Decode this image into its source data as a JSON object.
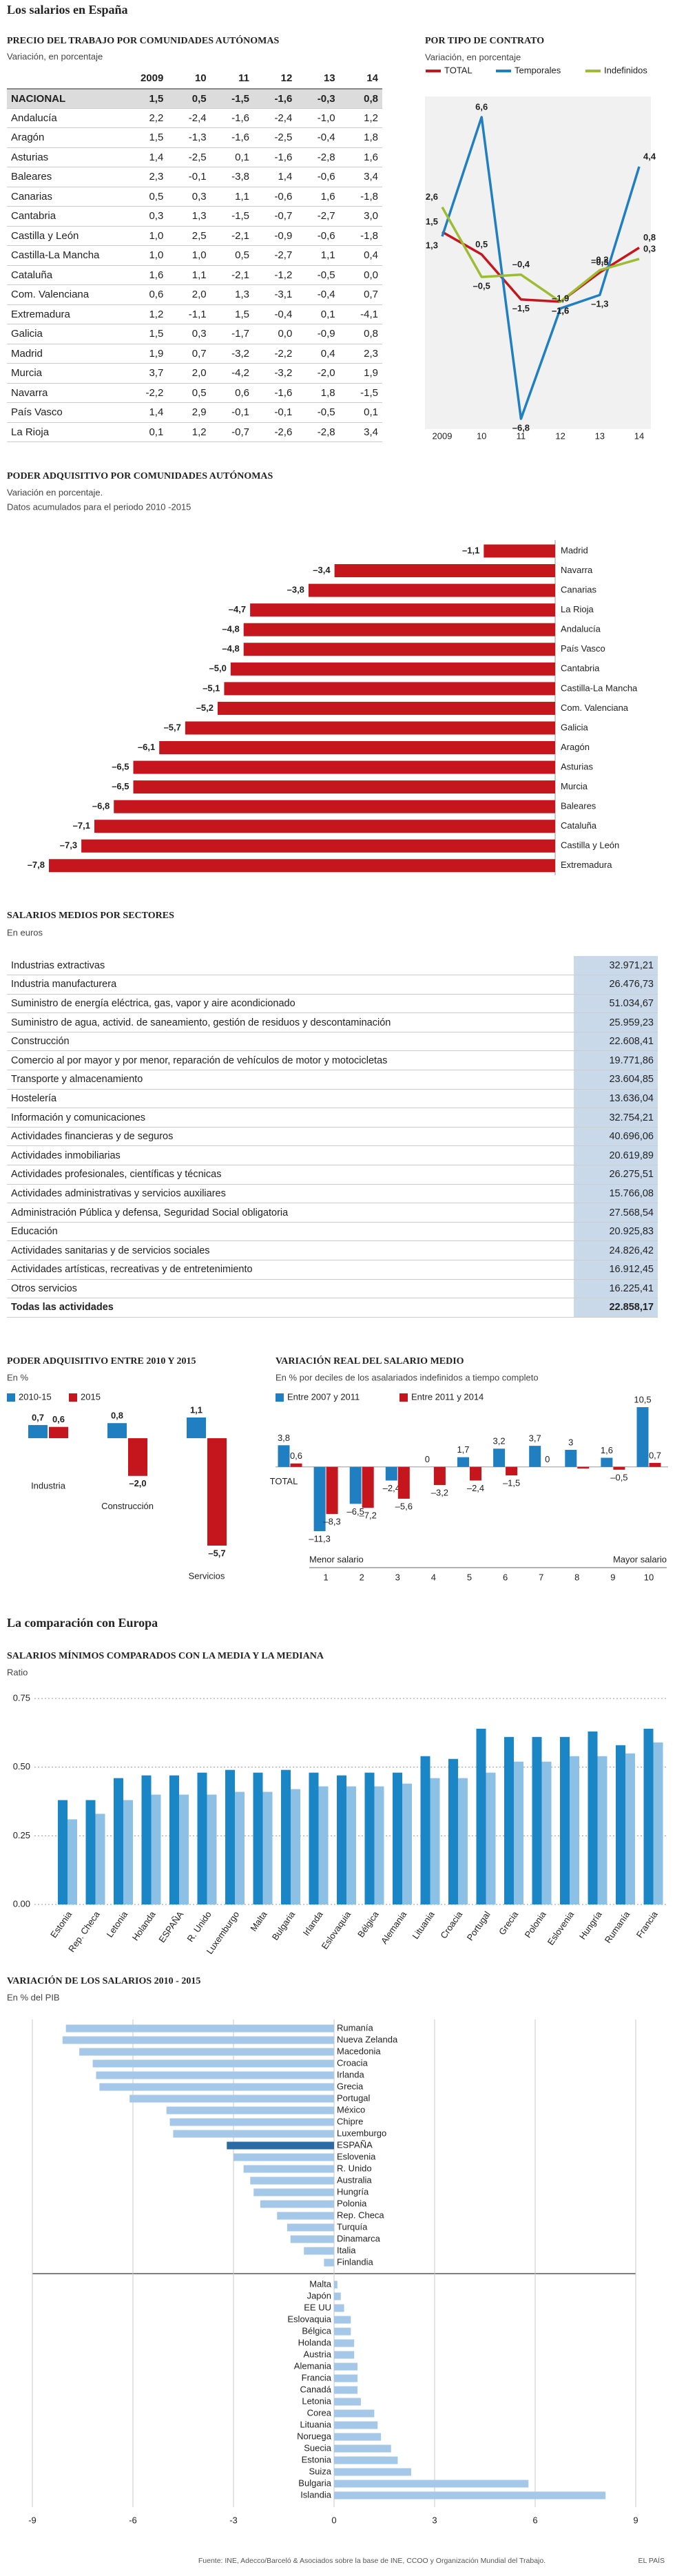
{
  "title": "Los salarios en España",
  "table_regions": {
    "title": "PRECIO DEL TRABAJO POR COMUNIDADES AUTÓNOMAS",
    "subtitle": "Variación, en porcentaje",
    "columns": [
      "2009",
      "10",
      "11",
      "12",
      "13",
      "14"
    ],
    "rows": [
      [
        "NACIONAL",
        "1,5",
        "0,5",
        "-1,5",
        "-1,6",
        "-0,3",
        "0,8"
      ],
      [
        "Andalucía",
        "2,2",
        "-2,4",
        "-1,6",
        "-2,4",
        "-1,0",
        "1,2"
      ],
      [
        "Aragón",
        "1,5",
        "-1,3",
        "-1,6",
        "-2,5",
        "-0,4",
        "1,8"
      ],
      [
        "Asturias",
        "1,4",
        "-2,5",
        "0,1",
        "-1,6",
        "-2,8",
        "1,6"
      ],
      [
        "Baleares",
        "2,3",
        "-0,1",
        "-3,8",
        "1,4",
        "-0,6",
        "3,4"
      ],
      [
        "Canarias",
        "0,5",
        "0,3",
        "1,1",
        "-0,6",
        "1,6",
        "-1,8"
      ],
      [
        "Cantabria",
        "0,3",
        "1,3",
        "-1,5",
        "-0,7",
        "-2,7",
        "3,0"
      ],
      [
        "Castilla y León",
        "1,0",
        "2,5",
        "-2,1",
        "-0,9",
        "-0,6",
        "-1,8"
      ],
      [
        "Castilla-La Mancha",
        "1,0",
        "1,0",
        "0,5",
        "-2,7",
        "1,1",
        "0,4"
      ],
      [
        "Cataluña",
        "1,6",
        "1,1",
        "-2,1",
        "-1,2",
        "-0,5",
        "0,0"
      ],
      [
        "Com. Valenciana",
        "0,6",
        "2,0",
        "1,3",
        "-3,1",
        "-0,4",
        "0,7"
      ],
      [
        "Extremadura",
        "1,2",
        "-1,1",
        "1,5",
        "-0,4",
        "0,1",
        "-4,1"
      ],
      [
        "Galicia",
        "1,5",
        "0,3",
        "-1,7",
        "0,0",
        "-0,9",
        "0,8"
      ],
      [
        "Madrid",
        "1,9",
        "0,7",
        "-3,2",
        "-2,2",
        "0,4",
        "2,3"
      ],
      [
        "Murcia",
        "3,7",
        "2,0",
        "-4,2",
        "-3,2",
        "-2,0",
        "1,9"
      ],
      [
        "Navarra",
        "-2,2",
        "0,5",
        "0,6",
        "-1,6",
        "1,8",
        "-1,5"
      ],
      [
        "País Vasco",
        "1,4",
        "2,9",
        "-0,1",
        "-0,1",
        "-0,5",
        "0,1"
      ],
      [
        "La Rioja",
        "0,1",
        "1,2",
        "-0,7",
        "-2,6",
        "-2,8",
        "3,4"
      ]
    ]
  },
  "table_sectors": {
    "title": "SALARIOS MEDIOS POR SECTORES",
    "subtitle": "En euros",
    "rows": [
      [
        "Industrias extractivas",
        "32.971,21"
      ],
      [
        "Industria manufacturera",
        "26.476,73"
      ],
      [
        "Suministro de energía eléctrica, gas, vapor y aire acondicionado",
        "51.034,67"
      ],
      [
        "Suministro de agua, activid. de saneamiento, gestión de residuos y descontaminación",
        "25.959,23"
      ],
      [
        "Construcción",
        "22.608,41"
      ],
      [
        "Comercio al por mayor y por menor, reparación de vehículos de motor y motocicletas",
        "19.771,86"
      ],
      [
        "Transporte y almacenamiento",
        "23.604,85"
      ],
      [
        "Hostelería",
        "13.636,04"
      ],
      [
        "Información y comunicaciones",
        "32.754,21"
      ],
      [
        "Actividades financieras y de seguros",
        "40.696,06"
      ],
      [
        "Actividades inmobiliarias",
        "20.619,89"
      ],
      [
        "Actividades profesionales, científicas y técnicas",
        "26.275,51"
      ],
      [
        "Actividades administrativas y servicios auxiliares",
        "15.766,08"
      ],
      [
        "Administración Pública y defensa, Seguridad Social obligatoria",
        "27.568,54"
      ],
      [
        "Educación",
        "20.925,83"
      ],
      [
        "Actividades sanitarias y de servicios sociales",
        "24.826,42"
      ],
      [
        "Actividades artísticas, recreativas y de entretenimiento",
        "16.912,45"
      ],
      [
        "Otros servicios",
        "16.225,41"
      ],
      [
        "Todas las actividades",
        "22.858,17"
      ]
    ]
  },
  "section_heading": "La comparación con Europa",
  "source": "Fuente: INE, Adecco/Barceló & Asociados sobre la base de INE, CCOO y Organización Mundial del Trabajo.",
  "credit": "EL PAÍS",
  "chart_data": [
    {
      "type": "line",
      "title": "POR TIPO DE CONTRATO",
      "subtitle": "Variación, en porcentaje",
      "categories": [
        "2009",
        "10",
        "11",
        "12",
        "13",
        "14"
      ],
      "series": [
        {
          "name": "TOTAL",
          "color": "#c4161c",
          "values": [
            1.5,
            0.5,
            -1.5,
            -1.6,
            -0.3,
            0.8
          ],
          "value_labels": [
            "1,5",
            "0,5",
            "–1,5",
            "–1,6",
            "–0,3",
            "0,8"
          ]
        },
        {
          "name": "Temporales",
          "color": "#1f7fc0",
          "values": [
            1.3,
            6.6,
            -6.8,
            -1.9,
            -1.3,
            4.4
          ],
          "value_labels": [
            "1,3",
            "6,6",
            "–6,8",
            "–1,9",
            "–1,3",
            "4,4"
          ]
        },
        {
          "name": "Indefinidos",
          "color": "#9dbb33",
          "values": [
            2.6,
            -0.5,
            -0.4,
            -1.6,
            -0.2,
            0.3
          ],
          "value_labels": [
            "2,6",
            "–0,5",
            "–0,4",
            "–1,6",
            "–0,2",
            "0,3"
          ]
        }
      ]
    },
    {
      "type": "barh",
      "title": "PODER ADQUISITIVO POR COMUNIDADES AUTÓNOMAS",
      "subtitle": [
        "Variación en porcentaje.",
        "Datos acumulados para el periodo 2010 -2015"
      ],
      "categories": [
        "Madrid",
        "Navarra",
        "Canarias",
        "La Rioja",
        "Andalucía",
        "País Vasco",
        "Cantabria",
        "Castilla-La Mancha",
        "Com. Valenciana",
        "Galicia",
        "Aragón",
        "Asturias",
        "Murcia",
        "Baleares",
        "Cataluña",
        "Castilla y León",
        "Extremadura"
      ],
      "values": [
        -1.1,
        -3.4,
        -3.8,
        -4.7,
        -4.8,
        -4.8,
        -5.0,
        -5.1,
        -5.2,
        -5.7,
        -6.1,
        -6.5,
        -6.5,
        -6.8,
        -7.1,
        -7.3,
        -7.8
      ],
      "value_labels": [
        "–1,1",
        "–3,4",
        "–3,8",
        "–4,7",
        "–4,8",
        "–4,8",
        "–5,0",
        "–5,1",
        "–5,2",
        "–5,7",
        "–6,1",
        "–6,5",
        "–6,5",
        "–6,8",
        "–7,1",
        "–7,3",
        "–7,8"
      ],
      "color": "#c4161c"
    },
    {
      "type": "bar",
      "title": "PODER ADQUISITIVO ENTRE 2010 Y 2015",
      "subtitle": "En %",
      "categories": [
        "Industria",
        "Construcción",
        "Servicios"
      ],
      "series": [
        {
          "name": "2010-15",
          "color": "#1f7fc0",
          "values": [
            0.7,
            0.8,
            1.1
          ],
          "value_labels": [
            "0,7",
            "0,8",
            "1,1"
          ]
        },
        {
          "name": "2015",
          "color": "#c4161c",
          "values": [
            0.6,
            -2.0,
            -5.7
          ],
          "value_labels": [
            "0,6",
            "–2,0",
            "–5,7"
          ]
        }
      ]
    },
    {
      "type": "bar",
      "title": "VARIACIÓN REAL DEL SALARIO MEDIO",
      "subtitle": "En % por deciles de los asalariados indefinidos a tiempo completo",
      "categories": [
        "TOTAL",
        "1",
        "2",
        "3",
        "4",
        "5",
        "6",
        "7",
        "8",
        "9",
        "10"
      ],
      "series": [
        {
          "name": "Entre 2007 y 2011",
          "color": "#1f7fc0",
          "values": [
            3.8,
            -11.3,
            -6.5,
            -2.4,
            0,
            1.7,
            3.2,
            3.7,
            3,
            1.6,
            10.5
          ],
          "value_labels": [
            "3,8",
            "–11,3",
            "–6,5",
            "–2,4",
            "0",
            "1,7",
            "3,2",
            "3,7",
            "3",
            "1,6",
            "10,5"
          ]
        },
        {
          "name": "Entre 2011 y 2014",
          "color": "#c4161c",
          "values": [
            0.6,
            -8.3,
            -7.2,
            -5.6,
            -3.2,
            -2.4,
            -1.5,
            0,
            -0.3,
            -0.5,
            0.7
          ],
          "value_labels": [
            "0,6",
            "–8,3",
            "–7,2",
            "–5,6",
            "–3,2",
            "–2,4",
            "–1,5",
            "0",
            null,
            "–0,5",
            "0,7"
          ]
        }
      ],
      "annotations": [
        "Menor salario",
        "Mayor salario"
      ]
    },
    {
      "type": "bar",
      "title": "SALARIOS MÍNIMOS COMPARADOS CON LA MEDIA Y LA MEDIANA",
      "subtitle": "Ratio",
      "categories": [
        "Estonia",
        "Rep. Checa",
        "Letonia",
        "Holanda",
        "ESPAÑA",
        "R. Unido",
        "Luxemburgo",
        "Malta",
        "Bulgaria",
        "Irlanda",
        "Eslovaquia",
        "Bélgica",
        "Alemania",
        "Lituania",
        "Croacia",
        "Portugal",
        "Grecia",
        "Polonia",
        "Eslovenia",
        "Hungría",
        "Rumanía",
        "Francia"
      ],
      "series": [
        {
          "color": "#1b86c6",
          "values": [
            0.38,
            0.38,
            0.46,
            0.47,
            0.47,
            0.48,
            0.49,
            0.48,
            0.49,
            0.48,
            0.47,
            0.48,
            0.48,
            0.54,
            0.53,
            0.64,
            0.61,
            0.61,
            0.61,
            0.63,
            0.58,
            0.64
          ]
        },
        {
          "color": "#8cc0e4",
          "values": [
            0.31,
            0.33,
            0.38,
            0.4,
            0.4,
            0.4,
            0.41,
            0.41,
            0.42,
            0.43,
            0.43,
            0.43,
            0.44,
            0.46,
            0.46,
            0.48,
            0.52,
            0.52,
            0.54,
            0.54,
            0.55,
            0.59
          ]
        }
      ],
      "ylim": [
        0,
        0.75
      ],
      "yticks": [
        {
          "value": 0,
          "label": "0.00"
        },
        {
          "value": 0.25,
          "label": "0.25"
        },
        {
          "value": 0.5,
          "label": "0.50"
        },
        {
          "value": 0.75,
          "label": "0.75"
        }
      ],
      "grid": true
    },
    {
      "type": "barh",
      "title": "VARIACIÓN DE LOS SALARIOS 2010 - 2015",
      "subtitle": "En % del PIB",
      "categories": [
        "Rumanía",
        "Nueva Zelanda",
        "Macedonia",
        "Croacia",
        "Irlanda",
        "Grecia",
        "Portugal",
        "México",
        "Chipre",
        "Luxemburgo",
        "ESPAÑA",
        "Eslovenia",
        "R. Unido",
        "Australia",
        "Hungría",
        "Polonia",
        "Rep. Checa",
        "Turquía",
        "Dinamarca",
        "Italia",
        "Finlandia",
        "Malta",
        "Japón",
        "EE UU",
        "Eslovaquia",
        "Bélgica",
        "Holanda",
        "Austria",
        "Alemania",
        "Francia",
        "Canadá",
        "Letonia",
        "Corea",
        "Lituania",
        "Noruega",
        "Suecia",
        "Estonia",
        "Suiza",
        "Bulgaria",
        "Islandia"
      ],
      "values": [
        -8.0,
        -8.1,
        -7.6,
        -7.2,
        -7.1,
        -7.0,
        -6.1,
        -5.0,
        -4.9,
        -4.8,
        -3.2,
        -3.0,
        -2.7,
        -2.5,
        -2.4,
        -2.2,
        -1.7,
        -1.4,
        -1.3,
        -0.9,
        -0.3,
        0.1,
        0.2,
        0.3,
        0.5,
        0.5,
        0.6,
        0.6,
        0.7,
        0.7,
        0.7,
        0.8,
        1.2,
        1.3,
        1.4,
        1.7,
        1.9,
        2.3,
        5.8,
        8.1
      ],
      "colors": [
        "#a6c8e8",
        "#a6c8e8",
        "#a6c8e8",
        "#a6c8e8",
        "#a6c8e8",
        "#a6c8e8",
        "#a6c8e8",
        "#a6c8e8",
        "#a6c8e8",
        "#a6c8e8",
        "#2c6aa5",
        "#a6c8e8",
        "#a6c8e8",
        "#a6c8e8",
        "#a6c8e8",
        "#a6c8e8",
        "#a6c8e8",
        "#a6c8e8",
        "#a6c8e8",
        "#a6c8e8",
        "#a6c8e8",
        "#a6c8e8",
        "#a6c8e8",
        "#a6c8e8",
        "#a6c8e8",
        "#a6c8e8",
        "#a6c8e8",
        "#a6c8e8",
        "#a6c8e8",
        "#a6c8e8",
        "#a6c8e8",
        "#a6c8e8",
        "#a6c8e8",
        "#a6c8e8",
        "#a6c8e8",
        "#a6c8e8",
        "#a6c8e8",
        "#a6c8e8",
        "#a6c8e8",
        "#a6c8e8"
      ],
      "xlim": [
        -9,
        9
      ],
      "xticks": [
        -9,
        -6,
        -3,
        0,
        3,
        6,
        9
      ],
      "grid": true
    }
  ]
}
